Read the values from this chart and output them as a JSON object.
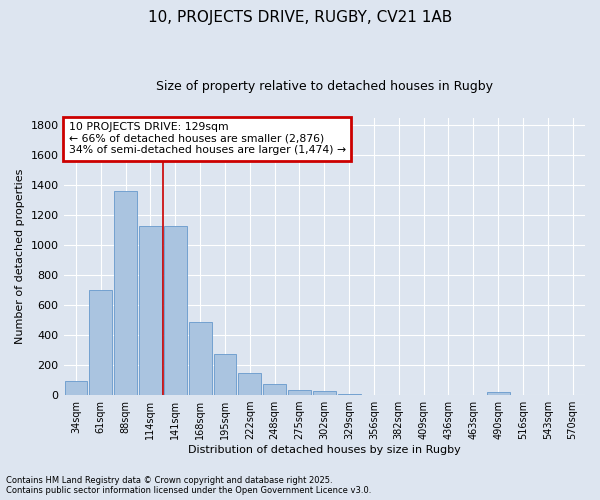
{
  "title1": "10, PROJECTS DRIVE, RUGBY, CV21 1AB",
  "title2": "Size of property relative to detached houses in Rugby",
  "xlabel": "Distribution of detached houses by size in Rugby",
  "ylabel": "Number of detached properties",
  "categories": [
    "34sqm",
    "61sqm",
    "88sqm",
    "114sqm",
    "141sqm",
    "168sqm",
    "195sqm",
    "222sqm",
    "248sqm",
    "275sqm",
    "302sqm",
    "329sqm",
    "356sqm",
    "382sqm",
    "409sqm",
    "436sqm",
    "463sqm",
    "490sqm",
    "516sqm",
    "543sqm",
    "570sqm"
  ],
  "values": [
    97,
    700,
    1360,
    1130,
    1130,
    490,
    275,
    145,
    75,
    35,
    30,
    5,
    2,
    2,
    2,
    1,
    0,
    20,
    0,
    0,
    0
  ],
  "bar_color": "#aac4e0",
  "bar_edge_color": "#6699cc",
  "annotation_box_text": "10 PROJECTS DRIVE: 129sqm\n← 66% of detached houses are smaller (2,876)\n34% of semi-detached houses are larger (1,474) →",
  "annotation_box_color": "white",
  "annotation_box_edge_color": "#cc0000",
  "vline_color": "#cc0000",
  "vline_x": 3.5,
  "bg_color": "#dde5f0",
  "plot_bg_color": "#dde5f0",
  "grid_color": "white",
  "footnote1": "Contains HM Land Registry data © Crown copyright and database right 2025.",
  "footnote2": "Contains public sector information licensed under the Open Government Licence v3.0.",
  "ylim": [
    0,
    1850
  ],
  "yticks": [
    0,
    200,
    400,
    600,
    800,
    1000,
    1200,
    1400,
    1600,
    1800
  ]
}
